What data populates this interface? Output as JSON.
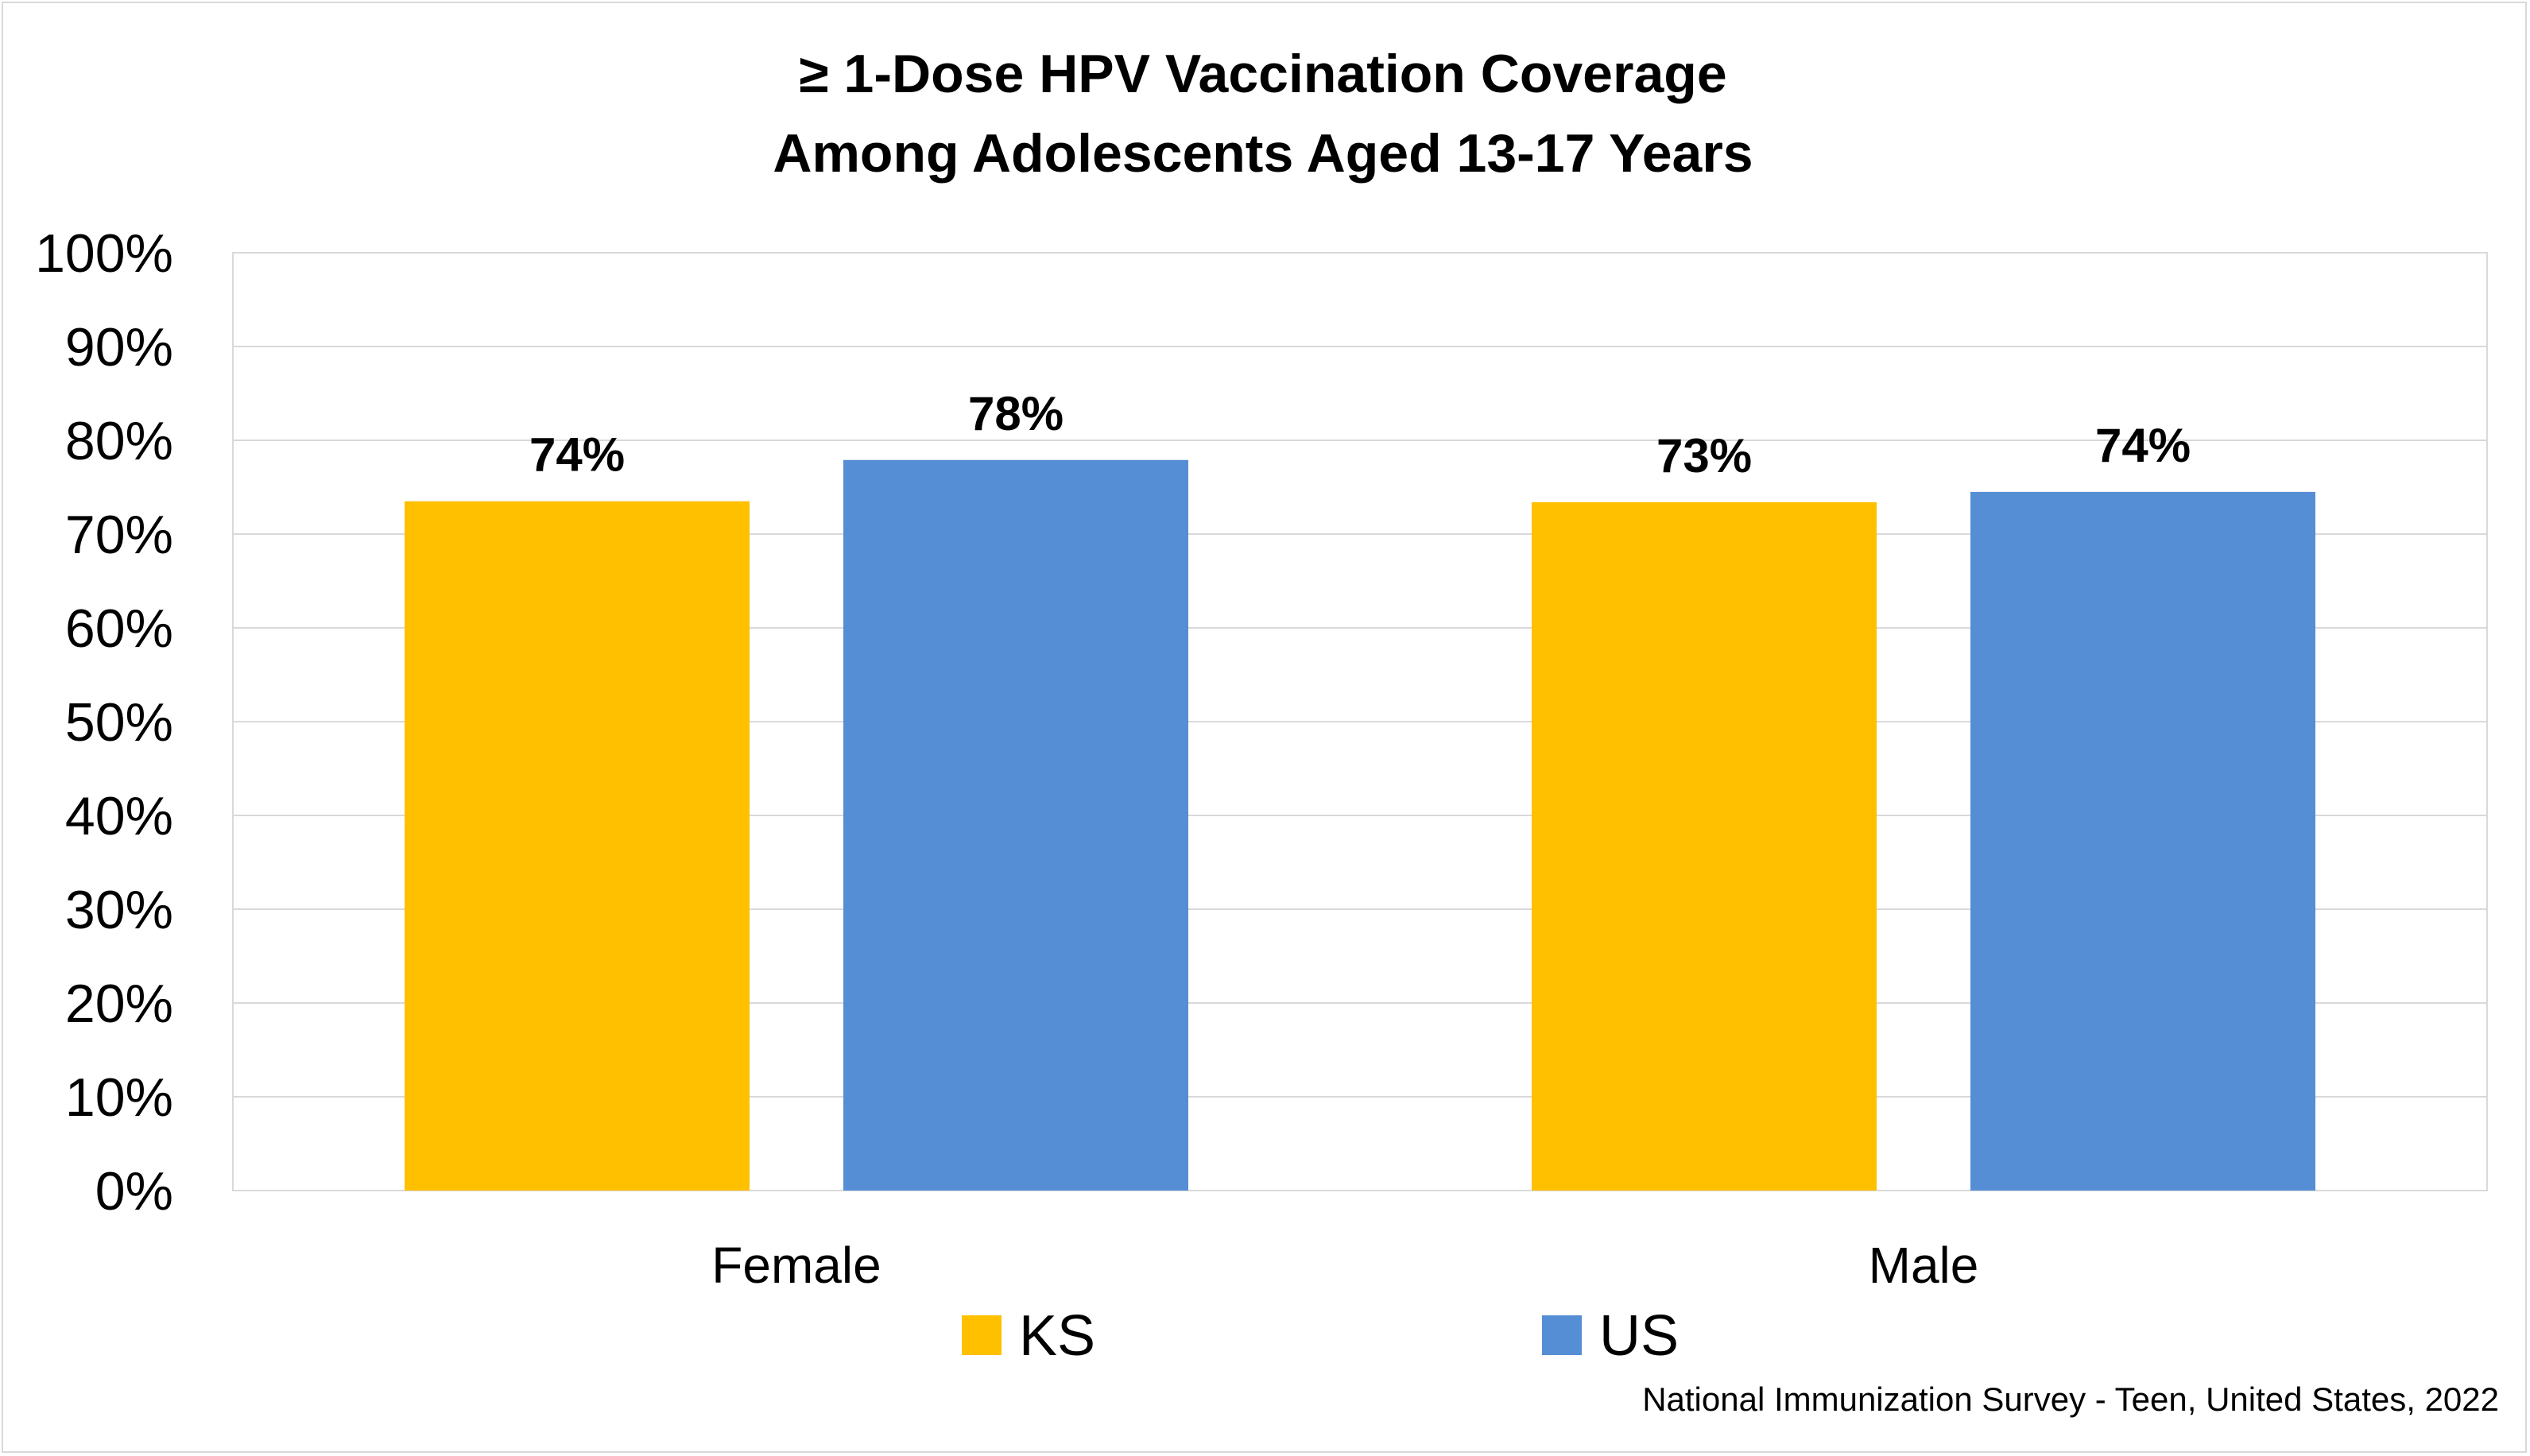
{
  "chart_data": {
    "type": "bar",
    "title_lines": [
      "≥ 1-Dose HPV Vaccination Coverage",
      "Among Adolescents Aged 13-17 Years"
    ],
    "xlabel": "",
    "ylabel": "",
    "categories": [
      "Female",
      "Male"
    ],
    "series": [
      {
        "name": "KS",
        "color": "#FFC000",
        "values": [
          73.5,
          73.4
        ],
        "labels": [
          "74%",
          "73%"
        ]
      },
      {
        "name": "US",
        "color": "#558ED5",
        "values": [
          77.9,
          74.5
        ],
        "labels": [
          "78%",
          "74%"
        ]
      }
    ],
    "ylim": [
      0,
      100
    ],
    "yticks": [
      0,
      10,
      20,
      30,
      40,
      50,
      60,
      70,
      80,
      90,
      100
    ],
    "ytick_labels": [
      "0%",
      "10%",
      "20%",
      "30%",
      "40%",
      "50%",
      "60%",
      "70%",
      "80%",
      "90%",
      "100%"
    ],
    "grid": true,
    "legend_position": "bottom",
    "source_note": "National Immunization Survey - Teen, United States, 2022"
  }
}
